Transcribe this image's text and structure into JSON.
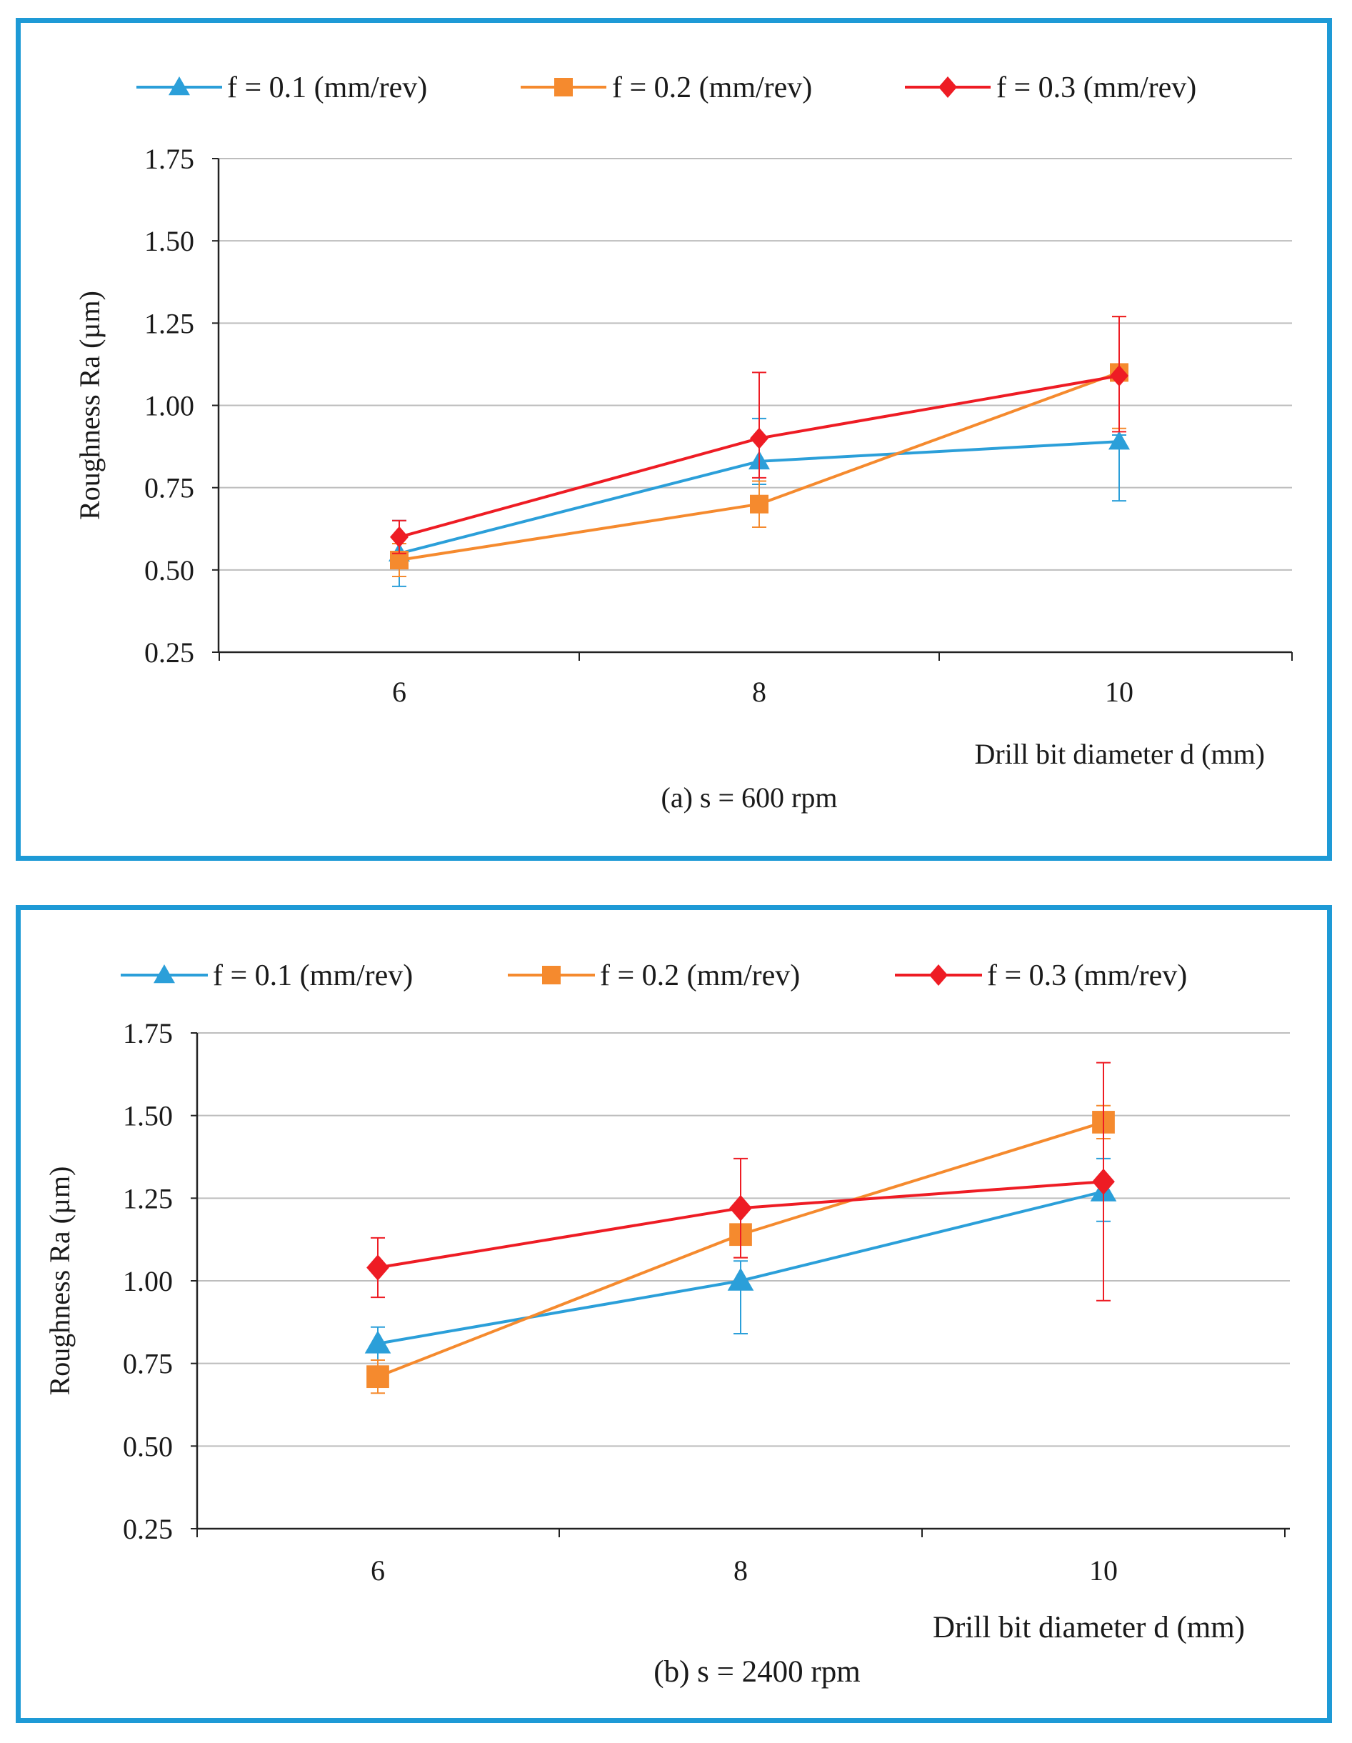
{
  "chart_data": [
    {
      "type": "line",
      "panel": "a",
      "caption": "(a) s = 600 rpm",
      "xlabel": "Drill  bit diameter  d (mm)",
      "ylabel": "Roughness Ra (µm)",
      "x": [
        6,
        8,
        10
      ],
      "x_tick_labels": [
        "6",
        "8",
        "10"
      ],
      "ylim": [
        0.25,
        1.75
      ],
      "y_ticks": [
        0.25,
        0.5,
        0.75,
        1.0,
        1.25,
        1.5,
        1.75
      ],
      "y_tick_labels": [
        "0.25",
        "0.50",
        "0.75",
        "1.00",
        "1.25",
        "1.50",
        "1.75"
      ],
      "grid": "horizontal",
      "legend_position": "top",
      "series": [
        {
          "name": "f = 0.1 (mm/rev)",
          "color": "#2b9fd9",
          "marker": "triangle",
          "values": [
            0.55,
            0.83,
            0.89
          ],
          "error_low": [
            0.1,
            0.07,
            0.18
          ],
          "error_high": [
            0.1,
            0.13,
            0.02
          ]
        },
        {
          "name": "f = 0.2 (mm/rev)",
          "color": "#f58a2e",
          "marker": "square",
          "values": [
            0.53,
            0.7,
            1.1
          ],
          "error_low": [
            0.05,
            0.07,
            0.17
          ],
          "error_high": [
            0.05,
            0.07,
            0.17
          ]
        },
        {
          "name": "f = 0.3 (mm/rev)",
          "color": "#ee1c24",
          "marker": "diamond",
          "values": [
            0.6,
            0.9,
            1.09
          ],
          "error_low": [
            0.05,
            0.12,
            0.17
          ],
          "error_high": [
            0.05,
            0.2,
            0.18
          ]
        }
      ]
    },
    {
      "type": "line",
      "panel": "b",
      "caption": "(b) s = 2400 rpm",
      "xlabel": "Drill  bit diameter  d (mm)",
      "ylabel": "Roughness Ra (µm)",
      "x": [
        6,
        8,
        10
      ],
      "x_tick_labels": [
        "6",
        "8",
        "10"
      ],
      "ylim": [
        0.25,
        1.75
      ],
      "y_ticks": [
        0.25,
        0.5,
        0.75,
        1.0,
        1.25,
        1.5,
        1.75
      ],
      "y_tick_labels": [
        "0.25",
        "0.50",
        "0.75",
        "1.00",
        "1.25",
        "1.50",
        "1.75"
      ],
      "grid": "horizontal",
      "legend_position": "top",
      "series": [
        {
          "name": "f = 0.1 (mm/rev)",
          "color": "#2b9fd9",
          "marker": "triangle",
          "values": [
            0.81,
            1.0,
            1.27
          ],
          "error_low": [
            0.05,
            0.16,
            0.09
          ],
          "error_high": [
            0.05,
            0.06,
            0.1
          ]
        },
        {
          "name": "f = 0.2 (mm/rev)",
          "color": "#f58a2e",
          "marker": "square",
          "values": [
            0.71,
            1.14,
            1.48
          ],
          "error_low": [
            0.05,
            0.07,
            0.05
          ],
          "error_high": [
            0.05,
            0.07,
            0.05
          ]
        },
        {
          "name": "f = 0.3 (mm/rev)",
          "color": "#ee1c24",
          "marker": "diamond",
          "values": [
            1.04,
            1.22,
            1.3
          ],
          "error_low": [
            0.09,
            0.15,
            0.36
          ],
          "error_high": [
            0.09,
            0.15,
            0.36
          ]
        }
      ]
    }
  ]
}
